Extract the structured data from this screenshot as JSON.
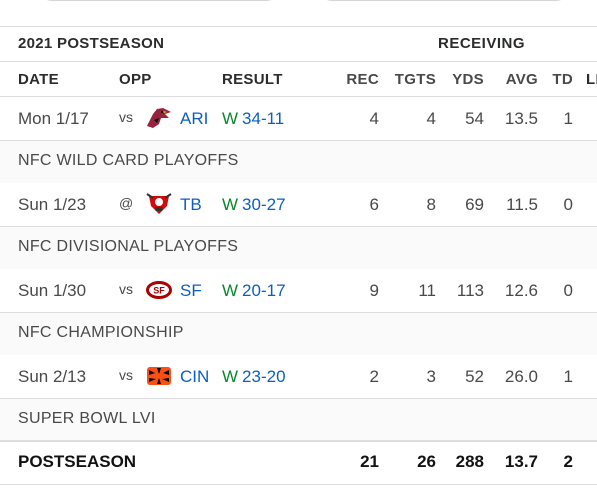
{
  "season_label": "2021 POSTSEASON",
  "stat_group": "RECEIVING",
  "columns": {
    "date": "DATE",
    "opp": "OPP",
    "result": "RESULT",
    "rec": "REC",
    "tgts": "TGTS",
    "yds": "YDS",
    "avg": "AVG",
    "td": "TD",
    "lng": "LI"
  },
  "games": [
    {
      "date": "Mon 1/17",
      "loc": "vs",
      "team": "ARI",
      "logo": "cardinals-logo-icon",
      "outcome": "W",
      "score": "34-11",
      "rec": "4",
      "tgts": "4",
      "yds": "54",
      "avg": "13.5",
      "td": "1",
      "round": "NFC WILD CARD PLAYOFFS"
    },
    {
      "date": "Sun 1/23",
      "loc": "@",
      "team": "TB",
      "logo": "buccaneers-logo-icon",
      "outcome": "W",
      "score": "30-27",
      "rec": "6",
      "tgts": "8",
      "yds": "69",
      "avg": "11.5",
      "td": "0",
      "round": "NFC DIVISIONAL PLAYOFFS"
    },
    {
      "date": "Sun 1/30",
      "loc": "vs",
      "team": "SF",
      "logo": "49ers-logo-icon",
      "outcome": "W",
      "score": "20-17",
      "rec": "9",
      "tgts": "11",
      "yds": "113",
      "avg": "12.6",
      "td": "0",
      "round": "NFC CHAMPIONSHIP"
    },
    {
      "date": "Sun 2/13",
      "loc": "vs",
      "team": "CIN",
      "logo": "bengals-logo-icon",
      "outcome": "W",
      "score": "23-20",
      "rec": "2",
      "tgts": "3",
      "yds": "52",
      "avg": "26.0",
      "td": "1",
      "round": "SUPER BOWL LVI"
    }
  ],
  "totals": {
    "label": "POSTSEASON",
    "rec": "21",
    "tgts": "26",
    "yds": "288",
    "avg": "13.7",
    "td": "2"
  },
  "colors": {
    "link": "#0b5fc2",
    "win": "#08882c",
    "text": "#48494a",
    "border": "#dcdddf"
  }
}
